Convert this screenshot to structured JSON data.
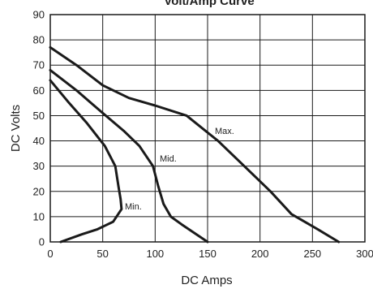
{
  "chart_data": {
    "type": "line",
    "title": "Volt/Amp Curve",
    "xlabel": "DC Amps",
    "ylabel": "DC Volts",
    "xlim": [
      0,
      300
    ],
    "ylim": [
      0,
      90
    ],
    "xticks": [
      "0",
      "50",
      "100",
      "150",
      "200",
      "250",
      "300"
    ],
    "yticks": [
      "0",
      "10",
      "20",
      "30",
      "40",
      "50",
      "60",
      "70",
      "80",
      "90"
    ],
    "grid": true,
    "legend": "none",
    "series": [
      {
        "name": "Max.",
        "x": [
          0,
          25,
          50,
          75,
          100,
          130,
          160,
          185,
          210,
          230,
          255,
          275
        ],
        "y": [
          77,
          70,
          62,
          57,
          54,
          50,
          40,
          30,
          20,
          11,
          5,
          0
        ]
      },
      {
        "name": "Mid.",
        "x": [
          0,
          25,
          50,
          70,
          85,
          98,
          103,
          108,
          115,
          125,
          150
        ],
        "y": [
          68,
          60,
          51,
          44,
          38,
          30,
          22,
          15,
          10,
          7,
          0
        ]
      },
      {
        "name": "Min.",
        "x": [
          0,
          18,
          35,
          52,
          62,
          65,
          67,
          68,
          60,
          45,
          30,
          10
        ],
        "y": [
          64,
          55,
          47,
          38,
          30,
          22,
          17,
          13,
          8,
          5,
          3,
          0
        ]
      }
    ]
  }
}
